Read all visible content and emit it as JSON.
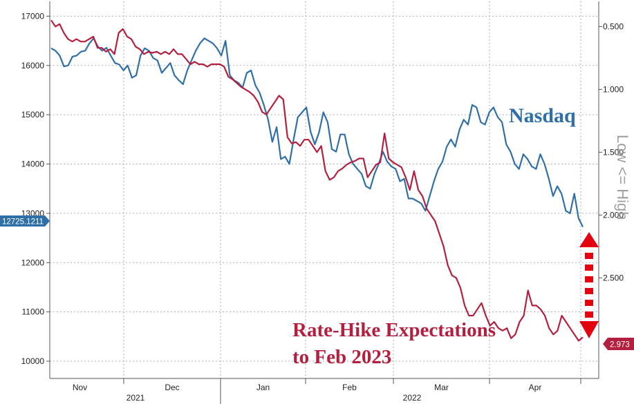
{
  "chart_data": {
    "type": "line",
    "x_axis": {
      "months": [
        "Nov",
        "Dec",
        "Jan",
        "Feb",
        "Mar",
        "Apr"
      ],
      "years": [
        "2021",
        "2022"
      ]
    },
    "left_axis": {
      "ylim": [
        9650,
        17300
      ],
      "ticks": [
        17000,
        16000,
        15000,
        14000,
        13000,
        12000,
        11000,
        10000
      ],
      "current_value_label": "12725.1211"
    },
    "right_axis": {
      "label": "Low <= High",
      "inverted": true,
      "ylim": [
        0.3,
        3.3
      ],
      "ticks": [
        "0.500",
        "1.000",
        "1.500",
        "2.000",
        "2.500"
      ],
      "current_value_label": "2.973"
    },
    "series": [
      {
        "name": "Nasdaq",
        "axis": "left",
        "color": "#2f6fa8",
        "values": [
          16350,
          16300,
          16200,
          15980,
          16000,
          16180,
          16200,
          16280,
          16300,
          16450,
          16550,
          16380,
          16300,
          16360,
          16200,
          16050,
          16020,
          15900,
          16000,
          15750,
          15800,
          16200,
          16350,
          16300,
          16150,
          16100,
          15850,
          15950,
          16050,
          15800,
          15700,
          15620,
          15900,
          16100,
          16300,
          16450,
          16550,
          16500,
          16450,
          16350,
          16200,
          16500,
          15800,
          15700,
          15650,
          15550,
          15850,
          15900,
          15600,
          15450,
          15200,
          14900,
          14450,
          14750,
          14100,
          14150,
          14000,
          14500,
          14950,
          15050,
          15150,
          14650,
          14400,
          14650,
          15050,
          14850,
          14300,
          14250,
          14600,
          14600,
          14200,
          14000,
          13900,
          13800,
          13550,
          13500,
          13800,
          14000,
          14250,
          14050,
          13950,
          13900,
          13650,
          13700,
          13300,
          13300,
          13250,
          13200,
          13050,
          13350,
          13650,
          13900,
          14050,
          14350,
          14500,
          14350,
          14700,
          14900,
          14800,
          15200,
          15150,
          14850,
          14800,
          15050,
          15150,
          14950,
          14850,
          14400,
          14250,
          14000,
          13900,
          14200,
          14100,
          13950,
          13900,
          14200,
          14000,
          13700,
          13350,
          13550,
          13400,
          13050,
          13000,
          13400,
          12900,
          12725
        ],
        "date_range": "Nov 2021 – Apr 2022"
      },
      {
        "name": "Rate-Hike Expectations to Feb 2023",
        "axis": "right",
        "color": "#b3203f",
        "values": [
          0.45,
          0.5,
          0.48,
          0.55,
          0.6,
          0.62,
          0.6,
          0.62,
          0.62,
          0.6,
          0.58,
          0.67,
          0.67,
          0.7,
          0.68,
          0.72,
          0.55,
          0.52,
          0.58,
          0.6,
          0.66,
          0.68,
          0.72,
          0.7,
          0.71,
          0.7,
          0.72,
          0.7,
          0.72,
          0.68,
          0.72,
          0.72,
          0.76,
          0.8,
          0.78,
          0.8,
          0.8,
          0.82,
          0.8,
          0.8,
          0.8,
          0.82,
          0.9,
          0.92,
          0.95,
          0.98,
          1.0,
          1.02,
          1.05,
          1.1,
          1.18,
          1.2,
          1.15,
          1.1,
          1.05,
          1.08,
          1.38,
          1.43,
          1.42,
          1.45,
          1.4,
          1.4,
          1.45,
          1.5,
          1.45,
          1.65,
          1.72,
          1.7,
          1.65,
          1.63,
          1.6,
          1.58,
          1.57,
          1.55,
          1.55,
          1.7,
          1.65,
          1.6,
          1.58,
          1.35,
          1.55,
          1.58,
          1.6,
          1.62,
          1.7,
          1.8,
          1.65,
          1.8,
          1.85,
          1.95,
          2.0,
          2.05,
          2.15,
          2.25,
          2.4,
          2.48,
          2.5,
          2.58,
          2.72,
          2.8,
          2.8,
          2.75,
          2.7,
          2.8,
          2.88,
          2.85,
          2.9,
          2.92,
          2.9,
          2.98,
          2.95,
          2.85,
          2.8,
          2.6,
          2.72,
          2.72,
          2.75,
          2.8,
          2.9,
          2.95,
          2.92,
          2.8,
          2.85,
          2.9,
          2.95,
          3.0,
          2.973
        ],
        "date_range": "Nov 2021 – Apr 2022"
      }
    ],
    "annotations": {
      "nasdaq_label": "Nasdaq",
      "rate_label_line1": "Rate-Hike Expectations",
      "rate_label_line2": "to Feb 2023"
    },
    "grid": true,
    "legend": "inline labels"
  }
}
